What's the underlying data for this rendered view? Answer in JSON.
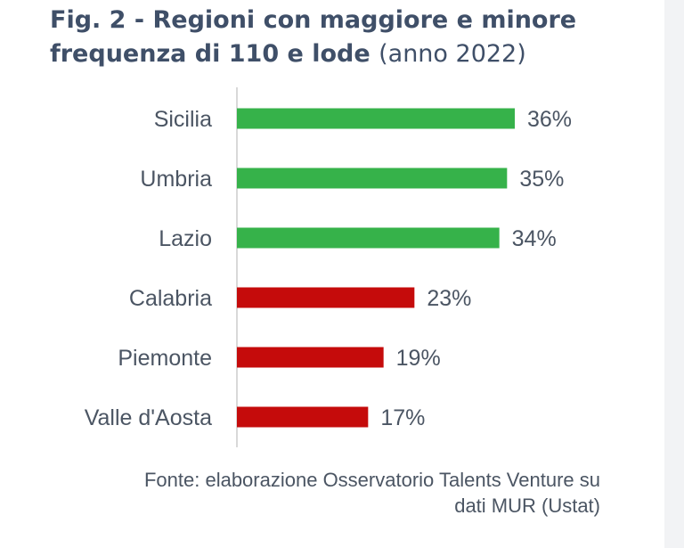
{
  "figure": {
    "title_bold": "Fig. 2 - Regioni con maggiore e minore frequenza di 110 e lode",
    "title_suffix": "(anno 2022)"
  },
  "chart_data": {
    "type": "bar",
    "orientation": "horizontal",
    "categories": [
      "Sicilia",
      "Umbria",
      "Lazio",
      "Calabria",
      "Piemonte",
      "Valle d'Aosta"
    ],
    "values": [
      36,
      35,
      34,
      23,
      19,
      17
    ],
    "value_labels": [
      "36%",
      "35%",
      "34%",
      "23%",
      "19%",
      "17%"
    ],
    "bar_colors": [
      "#36b24a",
      "#36b24a",
      "#36b24a",
      "#c50b0b",
      "#c50b0b",
      "#c50b0b"
    ],
    "xlim": [
      0,
      36
    ],
    "grid": false
  },
  "source": {
    "line1": "Fonte: elaborazione Osservatorio Talents Venture su",
    "line2": "dati MUR (Ustat)"
  },
  "colors": {
    "title": "#3f4f68",
    "axis": "#d9d9d9",
    "text": "#4b5563",
    "positive": "#36b24a",
    "negative": "#c50b0b"
  }
}
